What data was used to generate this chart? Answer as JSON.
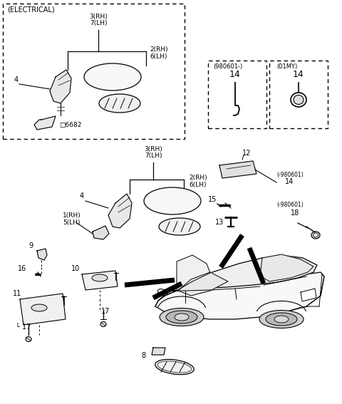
{
  "bg_color": "#ffffff",
  "lc": "#000000",
  "tc": "#000000",
  "fig_width": 4.8,
  "fig_height": 5.67,
  "dpi": 100,
  "elec_label": "(ELECTRICAL)",
  "box1_label": "(980601-)",
  "box2_label": "(01MY)"
}
